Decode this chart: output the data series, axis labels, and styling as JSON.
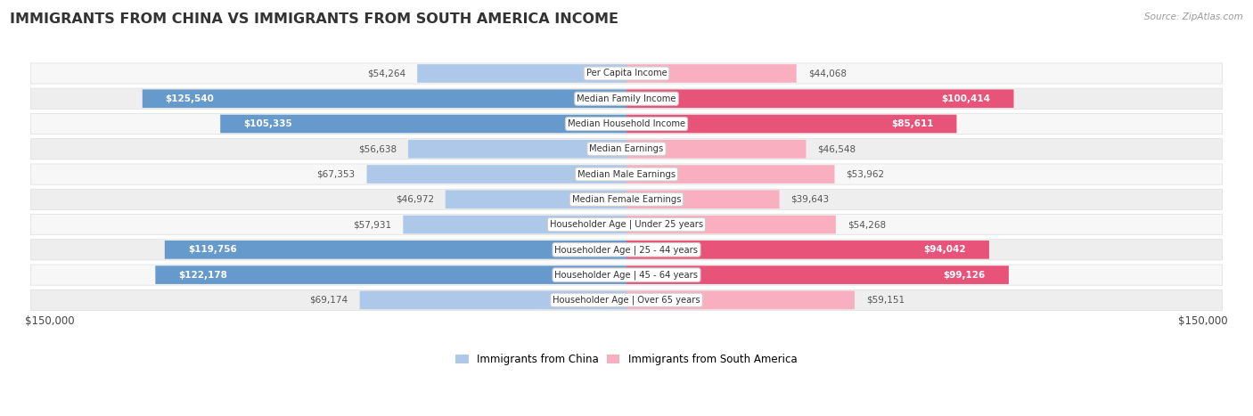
{
  "title": "IMMIGRANTS FROM CHINA VS IMMIGRANTS FROM SOUTH AMERICA INCOME",
  "source": "Source: ZipAtlas.com",
  "categories": [
    "Per Capita Income",
    "Median Family Income",
    "Median Household Income",
    "Median Earnings",
    "Median Male Earnings",
    "Median Female Earnings",
    "Householder Age | Under 25 years",
    "Householder Age | 25 - 44 years",
    "Householder Age | 45 - 64 years",
    "Householder Age | Over 65 years"
  ],
  "china_values": [
    54264,
    125540,
    105335,
    56638,
    67353,
    46972,
    57931,
    119756,
    122178,
    69174
  ],
  "south_america_values": [
    44068,
    100414,
    85611,
    46548,
    53962,
    39643,
    54268,
    94042,
    99126,
    59151
  ],
  "china_color_light": "#adc8e8",
  "china_color_dark": "#6699cc",
  "south_america_color_light": "#f9afc0",
  "south_america_color_dark": "#e8537a",
  "max_value": 150000,
  "white_text_threshold": 80000,
  "background_color": "#ffffff",
  "row_bg_even": "#f5f5f5",
  "row_bg_odd": "#ebebeb",
  "legend_china": "Immigrants from China",
  "legend_south_america": "Immigrants from South America",
  "x_tick_left": "$150,000",
  "x_tick_right": "$150,000"
}
